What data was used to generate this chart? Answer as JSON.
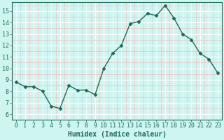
{
  "x": [
    0,
    1,
    2,
    3,
    4,
    5,
    6,
    7,
    8,
    9,
    10,
    11,
    12,
    13,
    14,
    15,
    16,
    17,
    18,
    19,
    20,
    21,
    22,
    23
  ],
  "y": [
    8.8,
    8.4,
    8.4,
    8.0,
    6.7,
    6.5,
    8.5,
    8.1,
    8.1,
    7.7,
    10.0,
    11.3,
    12.0,
    13.9,
    14.1,
    14.8,
    14.6,
    15.5,
    14.4,
    13.0,
    12.5,
    11.3,
    10.8,
    9.6
  ],
  "line_color": "#1a6b5a",
  "marker": "D",
  "marker_size": 2.5,
  "background_color": "#cff5f0",
  "grid_color": "#ffffff",
  "grid_minor_color": "#e8f8f5",
  "xlabel": "Humidex (Indice chaleur)",
  "xlabel_fontsize": 7,
  "tick_fontsize": 6,
  "ylim": [
    6,
    15.8
  ],
  "xlim": [
    -0.5,
    23.5
  ],
  "yticks": [
    6,
    7,
    8,
    9,
    10,
    11,
    12,
    13,
    14,
    15
  ],
  "xticks": [
    0,
    1,
    2,
    3,
    4,
    5,
    6,
    7,
    8,
    9,
    10,
    11,
    12,
    13,
    14,
    15,
    16,
    17,
    18,
    19,
    20,
    21,
    22,
    23
  ]
}
